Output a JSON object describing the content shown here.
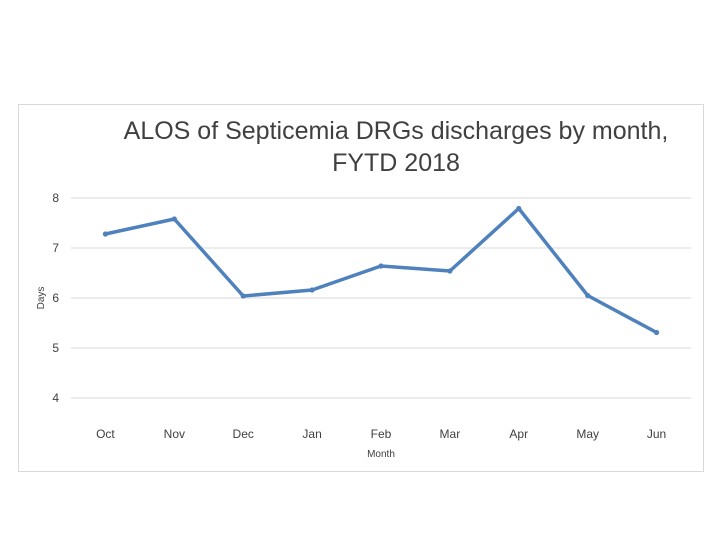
{
  "chart_data": {
    "type": "line",
    "title_line1": "ALOS of Septicemia DRGs discharges by month,",
    "title_line2": "FYTD 2018",
    "xlabel": "Month",
    "ylabel": "Days",
    "categories": [
      "Oct",
      "Nov",
      "Dec",
      "Jan",
      "Feb",
      "Mar",
      "Apr",
      "May",
      "Jun"
    ],
    "series": [
      {
        "values": [
          7.28,
          7.58,
          6.04,
          6.16,
          6.64,
          6.54,
          7.79,
          6.05,
          5.31
        ]
      }
    ],
    "ylim": [
      4,
      8
    ],
    "yticks": [
      4,
      5,
      6,
      7,
      8
    ],
    "grid": true,
    "color": "#4f81bd"
  }
}
